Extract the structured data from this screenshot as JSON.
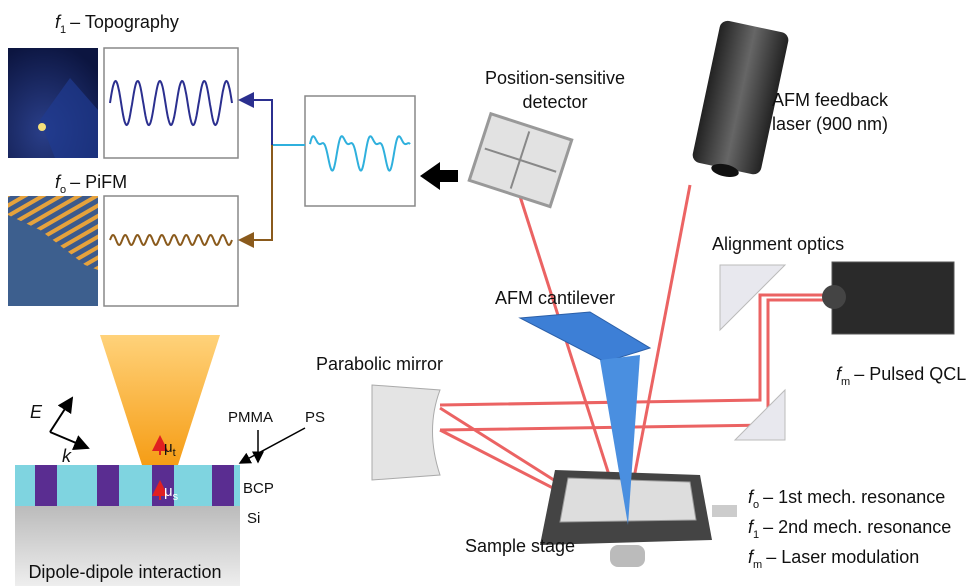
{
  "panels": {
    "topography": {
      "symbol": "f",
      "subscript": "1",
      "text": "– Topography"
    },
    "pifm": {
      "symbol": "f",
      "subscript": "o",
      "text": "– PiFM"
    }
  },
  "labels": {
    "detector": [
      "Position-sensitive",
      "detector"
    ],
    "feedback_laser": [
      "AFM feedback",
      "laser (900 nm)"
    ],
    "alignment_optics": "Alignment optics",
    "cantilever": "AFM cantilever",
    "qcl": {
      "symbol": "f",
      "subscript": "m",
      "text": "– Pulsed QCL"
    },
    "parabolic_mirror": "Parabolic mirror",
    "sample_stage": "Sample stage"
  },
  "legend": [
    {
      "symbol": "f",
      "subscript": "o",
      "text": "– 1st mech. resonance"
    },
    {
      "symbol": "f",
      "subscript": "1",
      "text": "– 2nd mech. resonance"
    },
    {
      "symbol": "f",
      "subscript": "m",
      "text": "– Laser modulation"
    }
  ],
  "interaction": {
    "e_field": "E",
    "wavevector": "k",
    "tip_dipole": {
      "symbol": "μ",
      "subscript": "t"
    },
    "sample_dipole": {
      "symbol": "μ",
      "subscript": "s"
    },
    "pmma": "PMMA",
    "ps": "PS",
    "bcp": "BCP",
    "si": "Si",
    "caption": "Dipole-dipole interaction"
  }
}
